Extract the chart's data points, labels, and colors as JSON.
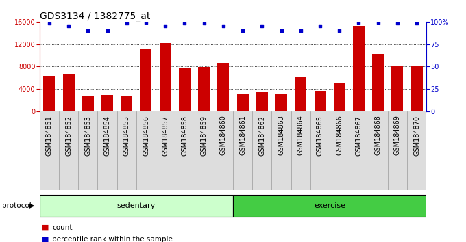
{
  "title": "GDS3134 / 1382775_at",
  "categories": [
    "GSM184851",
    "GSM184852",
    "GSM184853",
    "GSM184854",
    "GSM184855",
    "GSM184856",
    "GSM184857",
    "GSM184858",
    "GSM184859",
    "GSM184860",
    "GSM184861",
    "GSM184862",
    "GSM184863",
    "GSM184864",
    "GSM184865",
    "GSM184866",
    "GSM184867",
    "GSM184868",
    "GSM184869",
    "GSM184870"
  ],
  "bar_values": [
    6300,
    6700,
    2700,
    2900,
    2700,
    11200,
    12200,
    7700,
    7900,
    8700,
    3200,
    3500,
    3200,
    6100,
    3700,
    5000,
    15300,
    10300,
    8200,
    8000
  ],
  "percentile_values": [
    98,
    95,
    90,
    90,
    98,
    99,
    95,
    98,
    98,
    95,
    90,
    95,
    90,
    90,
    95,
    90,
    99,
    99,
    98,
    98
  ],
  "bar_color": "#cc0000",
  "dot_color": "#0000cc",
  "ylim_left": [
    0,
    16000
  ],
  "ylim_right": [
    0,
    100
  ],
  "yticks_left": [
    0,
    4000,
    8000,
    12000,
    16000
  ],
  "yticks_right": [
    0,
    25,
    50,
    75,
    100
  ],
  "yticklabels_right": [
    "0",
    "25",
    "50",
    "75",
    "100%"
  ],
  "group_sedentary_label": "sedentary",
  "group_exercise_label": "exercise",
  "protocol_label": "protocol",
  "legend_count_label": "count",
  "legend_percentile_label": "percentile rank within the sample",
  "bg_plot": "#ffffff",
  "bg_sedentary": "#ccffcc",
  "bg_exercise": "#44cc44",
  "bg_xlabel": "#dddddd",
  "title_fontsize": 10,
  "tick_fontsize": 7,
  "label_fontsize": 8,
  "dotted_gridlines": [
    4000,
    8000,
    12000
  ]
}
